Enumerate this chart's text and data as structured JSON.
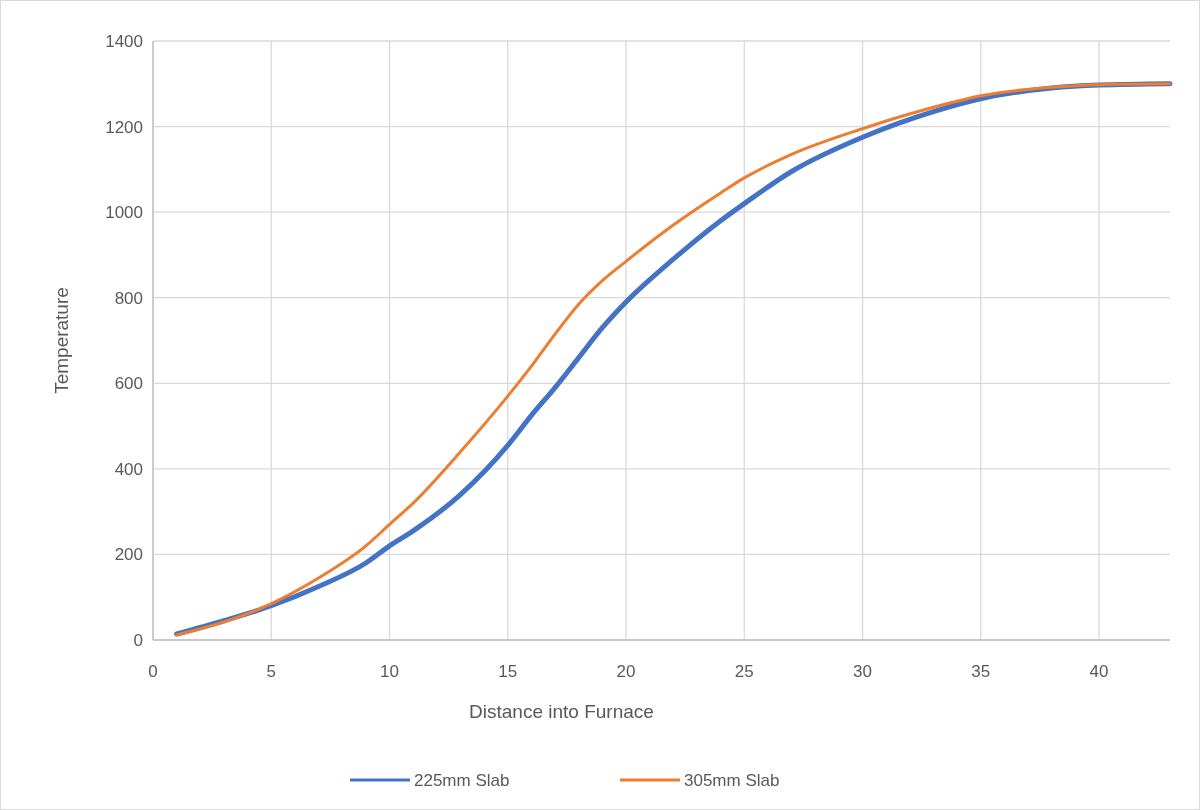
{
  "chart_data": {
    "type": "line",
    "xlabel": "Distance into Furnace",
    "ylabel": "Temperature",
    "xlim": [
      0,
      43
    ],
    "xticks": [
      0,
      5,
      10,
      15,
      20,
      25,
      30,
      35,
      40
    ],
    "ylim": [
      0,
      1400
    ],
    "yticks": [
      0,
      200,
      400,
      600,
      800,
      1000,
      1200,
      1400
    ],
    "grid": true,
    "legend": "bottom",
    "marker": "none",
    "line_style": "solid",
    "series": [
      {
        "name": "225mm Slab",
        "color": "#4472c4",
        "x": [
          1,
          3,
          5,
          7,
          9,
          10,
          11,
          13,
          15,
          16,
          17,
          18,
          19,
          20,
          22,
          24,
          25,
          27,
          30,
          33,
          35,
          38,
          40,
          43
        ],
        "values": [
          14,
          45,
          80,
          125,
          180,
          220,
          255,
          340,
          455,
          525,
          590,
          660,
          730,
          790,
          890,
          980,
          1020,
          1095,
          1175,
          1235,
          1265,
          1290,
          1297,
          1300
        ]
      },
      {
        "name": "305mm Slab",
        "color": "#ed7d31",
        "x": [
          1,
          3,
          5,
          7,
          9,
          10,
          11,
          13,
          15,
          16,
          17,
          18,
          19,
          20,
          22,
          24,
          25,
          27,
          30,
          33,
          35,
          38,
          40,
          43
        ],
        "values": [
          12,
          42,
          85,
          145,
          220,
          270,
          320,
          440,
          570,
          640,
          715,
          785,
          840,
          885,
          970,
          1045,
          1080,
          1135,
          1195,
          1245,
          1272,
          1292,
          1298,
          1300
        ]
      }
    ]
  }
}
